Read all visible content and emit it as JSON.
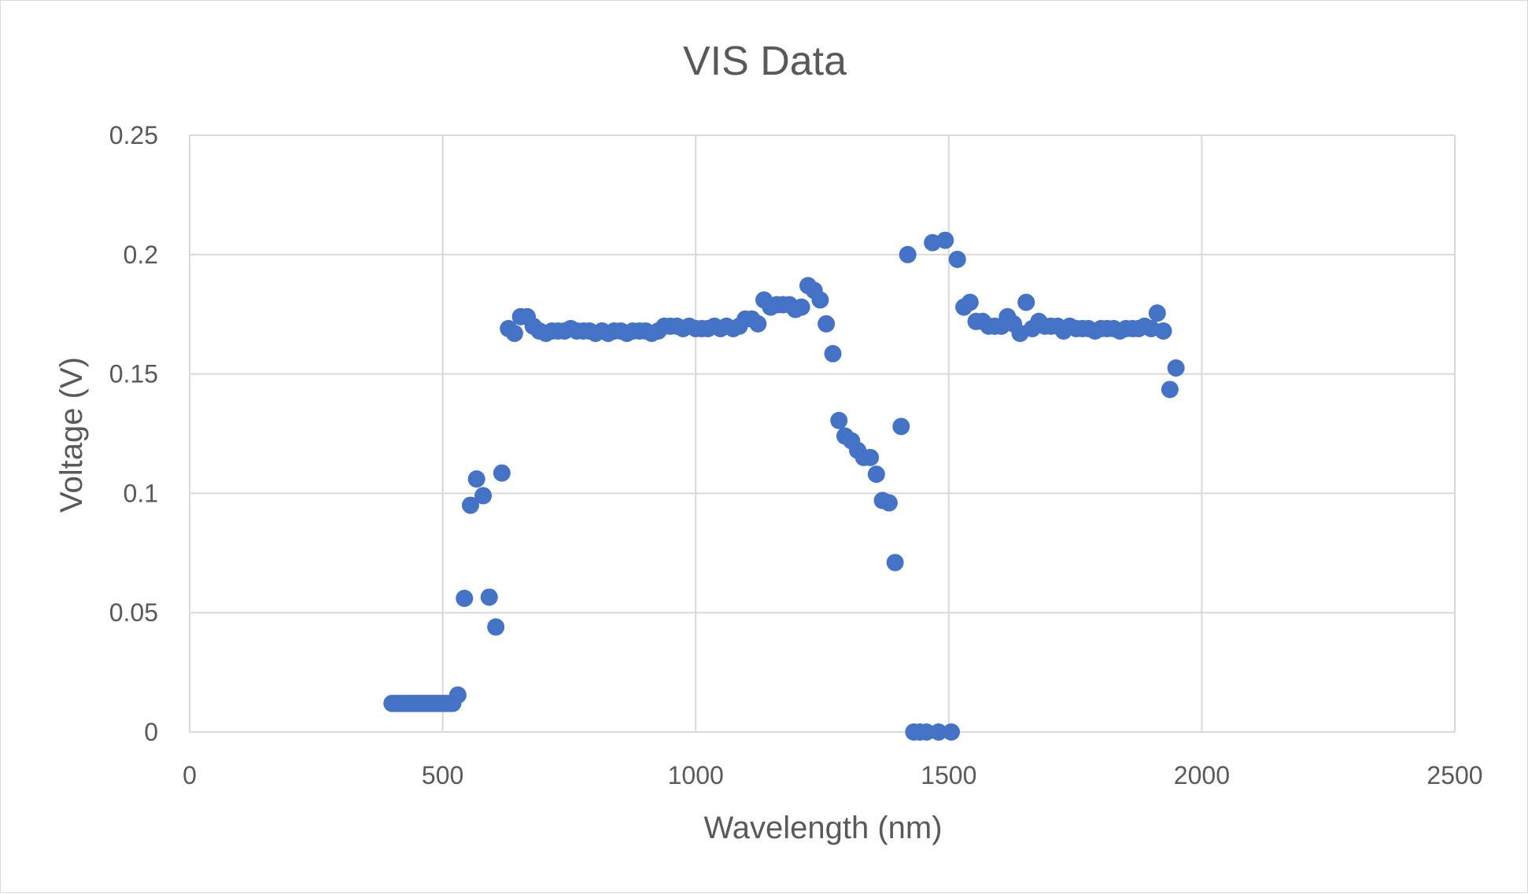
{
  "chart_data": {
    "type": "scatter",
    "title": "VIS Data",
    "xlabel": "Wavelength (nm)",
    "ylabel": "Voltage (V)",
    "xlim": [
      0,
      2500
    ],
    "ylim": [
      0,
      0.25
    ],
    "xticks": [
      0,
      500,
      1000,
      1500,
      2000,
      2500
    ],
    "yticks": [
      0,
      0.05,
      0.1,
      0.15,
      0.2,
      0.25
    ],
    "xtick_labels": [
      "0",
      "500",
      "1000",
      "1500",
      "2000",
      "2500"
    ],
    "ytick_labels": [
      "0",
      "0.05",
      "0.1",
      "0.15",
      "0.2",
      "0.25"
    ],
    "grid": true,
    "legend": "none",
    "marker_color": "#4472c4",
    "series": [
      {
        "points": [
          [
            400,
            0.012
          ],
          [
            405,
            0.012
          ],
          [
            410,
            0.012
          ],
          [
            415,
            0.012
          ],
          [
            420,
            0.012
          ],
          [
            425,
            0.012
          ],
          [
            430,
            0.012
          ],
          [
            435,
            0.012
          ],
          [
            440,
            0.012
          ],
          [
            445,
            0.012
          ],
          [
            450,
            0.012
          ],
          [
            455,
            0.012
          ],
          [
            460,
            0.012
          ],
          [
            465,
            0.012
          ],
          [
            470,
            0.012
          ],
          [
            475,
            0.012
          ],
          [
            480,
            0.012
          ],
          [
            485,
            0.012
          ],
          [
            490,
            0.012
          ],
          [
            495,
            0.012
          ],
          [
            500,
            0.012
          ],
          [
            505,
            0.012
          ],
          [
            510,
            0.012
          ],
          [
            515,
            0.012
          ],
          [
            520,
            0.012
          ],
          [
            530,
            0.0155
          ],
          [
            543,
            0.056
          ],
          [
            555,
            0.095
          ],
          [
            567,
            0.106
          ],
          [
            580,
            0.099
          ],
          [
            592,
            0.0565
          ],
          [
            605,
            0.044
          ],
          [
            617,
            0.1085
          ],
          [
            630,
            0.169
          ],
          [
            642,
            0.167
          ],
          [
            654,
            0.174
          ],
          [
            667,
            0.174
          ],
          [
            679,
            0.17
          ],
          [
            691,
            0.168
          ],
          [
            704,
            0.167
          ],
          [
            716,
            0.168
          ],
          [
            728,
            0.168
          ],
          [
            741,
            0.168
          ],
          [
            753,
            0.169
          ],
          [
            765,
            0.168
          ],
          [
            778,
            0.168
          ],
          [
            790,
            0.168
          ],
          [
            802,
            0.167
          ],
          [
            815,
            0.168
          ],
          [
            827,
            0.167
          ],
          [
            839,
            0.168
          ],
          [
            852,
            0.168
          ],
          [
            864,
            0.167
          ],
          [
            876,
            0.168
          ],
          [
            889,
            0.168
          ],
          [
            901,
            0.168
          ],
          [
            913,
            0.167
          ],
          [
            926,
            0.168
          ],
          [
            938,
            0.17
          ],
          [
            950,
            0.17
          ],
          [
            963,
            0.17
          ],
          [
            975,
            0.169
          ],
          [
            987,
            0.17
          ],
          [
            1000,
            0.169
          ],
          [
            1012,
            0.169
          ],
          [
            1024,
            0.169
          ],
          [
            1037,
            0.17
          ],
          [
            1049,
            0.169
          ],
          [
            1061,
            0.17
          ],
          [
            1074,
            0.169
          ],
          [
            1086,
            0.17
          ],
          [
            1098,
            0.173
          ],
          [
            1111,
            0.173
          ],
          [
            1123,
            0.171
          ],
          [
            1135,
            0.181
          ],
          [
            1148,
            0.178
          ],
          [
            1160,
            0.179
          ],
          [
            1172,
            0.179
          ],
          [
            1185,
            0.179
          ],
          [
            1197,
            0.177
          ],
          [
            1209,
            0.178
          ],
          [
            1222,
            0.187
          ],
          [
            1234,
            0.185
          ],
          [
            1246,
            0.181
          ],
          [
            1258,
            0.171
          ],
          [
            1271,
            0.1585
          ],
          [
            1283,
            0.1305
          ],
          [
            1295,
            0.124
          ],
          [
            1308,
            0.122
          ],
          [
            1320,
            0.118
          ],
          [
            1332,
            0.115
          ],
          [
            1345,
            0.115
          ],
          [
            1357,
            0.108
          ],
          [
            1369,
            0.097
          ],
          [
            1382,
            0.096
          ],
          [
            1394,
            0.071
          ],
          [
            1406,
            0.128
          ],
          [
            1419,
            0.2
          ],
          [
            1431,
            0.0
          ],
          [
            1443,
            0.0
          ],
          [
            1456,
            0.0
          ],
          [
            1468,
            0.205
          ],
          [
            1480,
            0.0
          ],
          [
            1493,
            0.206
          ],
          [
            1505,
            0.0
          ],
          [
            1517,
            0.198
          ],
          [
            1530,
            0.178
          ],
          [
            1542,
            0.18
          ],
          [
            1554,
            0.172
          ],
          [
            1567,
            0.172
          ],
          [
            1579,
            0.17
          ],
          [
            1591,
            0.17
          ],
          [
            1604,
            0.17
          ],
          [
            1616,
            0.174
          ],
          [
            1628,
            0.171
          ],
          [
            1641,
            0.167
          ],
          [
            1653,
            0.18
          ],
          [
            1665,
            0.169
          ],
          [
            1678,
            0.172
          ],
          [
            1690,
            0.17
          ],
          [
            1702,
            0.17
          ],
          [
            1715,
            0.17
          ],
          [
            1727,
            0.168
          ],
          [
            1739,
            0.17
          ],
          [
            1752,
            0.169
          ],
          [
            1764,
            0.169
          ],
          [
            1776,
            0.169
          ],
          [
            1789,
            0.168
          ],
          [
            1801,
            0.169
          ],
          [
            1813,
            0.169
          ],
          [
            1826,
            0.169
          ],
          [
            1838,
            0.168
          ],
          [
            1850,
            0.169
          ],
          [
            1863,
            0.169
          ],
          [
            1875,
            0.169
          ],
          [
            1887,
            0.17
          ],
          [
            1900,
            0.169
          ],
          [
            1912,
            0.1755
          ],
          [
            1924,
            0.168
          ],
          [
            1937,
            0.1435
          ],
          [
            1949,
            0.1525
          ]
        ]
      }
    ]
  }
}
